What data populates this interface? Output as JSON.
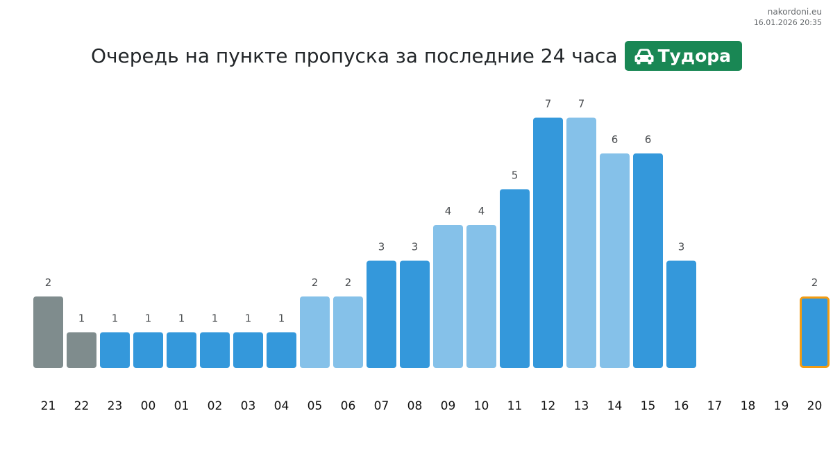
{
  "header": {
    "title": "Очередь на пункте пропуска за последние 24 часа",
    "badge_label": "Тудора",
    "badge_icon": "car-icon",
    "badge_color": "#198754"
  },
  "meta": {
    "site": "nakordoni.eu",
    "timestamp": "16.01.2026 20:35"
  },
  "colors": {
    "past": "#7f8c8d",
    "normal": "#3498db",
    "light": "#85c1e9",
    "highlight_border": "#f39c12"
  },
  "chart_data": {
    "type": "bar",
    "categories": [
      "21",
      "22",
      "23",
      "00",
      "01",
      "02",
      "03",
      "04",
      "05",
      "06",
      "07",
      "08",
      "09",
      "10",
      "11",
      "12",
      "13",
      "14",
      "15",
      "16",
      "17",
      "18",
      "19",
      "20"
    ],
    "values": [
      2,
      1,
      1,
      1,
      1,
      1,
      1,
      1,
      2,
      2,
      3,
      3,
      4,
      4,
      5,
      7,
      7,
      6,
      6,
      3,
      null,
      null,
      null,
      2
    ],
    "bar_styles": [
      "past",
      "past",
      "normal",
      "normal",
      "normal",
      "normal",
      "normal",
      "normal",
      "light",
      "light",
      "normal",
      "normal",
      "light",
      "light",
      "normal",
      "normal",
      "light",
      "light",
      "normal",
      "normal",
      "none",
      "none",
      "none",
      "current"
    ],
    "title": "Очередь на пункте пропуска за последние 24 часа",
    "xlabel": "",
    "ylabel": "",
    "ylim": [
      0,
      7
    ],
    "grid": false,
    "legend": "none"
  }
}
